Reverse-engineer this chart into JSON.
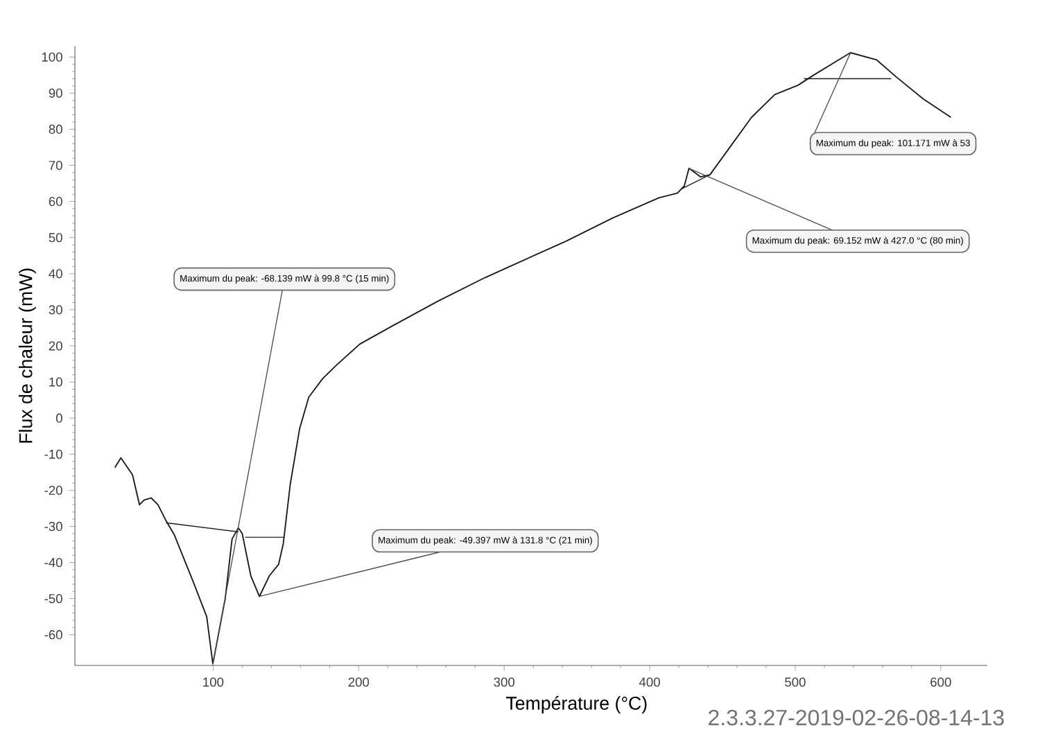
{
  "chart_data": {
    "type": "line",
    "xlabel": "Température (°C)",
    "ylabel": "Flux de chaleur (mW)",
    "marker": "none",
    "line_style": "solid",
    "xlim": [
      5,
      632
    ],
    "ylim": [
      -68.5,
      103
    ],
    "xticks": [
      100,
      200,
      300,
      400,
      500,
      600
    ],
    "yticks": [
      -60,
      -50,
      -40,
      -30,
      -20,
      -10,
      0,
      10,
      20,
      30,
      40,
      50,
      60,
      70,
      80,
      90,
      100
    ],
    "series": [
      {
        "color": "#1a1a1a",
        "x": [
          32.5,
          36.6,
          44.6,
          49.4,
          52.6,
          57.4,
          62.1,
          67.6,
          73.3,
          86,
          95.6,
          99.8,
          108.3,
          113,
          117.3,
          120,
          125.9,
          131.8,
          138.6,
          145,
          148.2,
          153,
          159.4,
          165.7,
          175.2,
          184.8,
          200.8,
          223,
          255,
          286.8,
          306,
          342.6,
          374.4,
          406.3,
          419,
          423.8,
          427,
          435,
          441.4,
          454,
          470,
          486,
          502,
          511.5,
          527.4,
          538,
          556,
          568.8,
          588,
          607
        ],
        "values": [
          -13.7,
          -11,
          -15.7,
          -24,
          -22.7,
          -22.1,
          -24,
          -28.4,
          -32.3,
          -45,
          -55,
          -68.1,
          -50,
          -33.5,
          -30.4,
          -32,
          -43.7,
          -49.4,
          -43.7,
          -40.5,
          -34.8,
          -18.3,
          -3,
          5.8,
          10.9,
          14.7,
          20.5,
          25.5,
          32.5,
          38.9,
          42.4,
          49,
          55.4,
          61,
          62.3,
          64.3,
          69.2,
          66.8,
          67.4,
          74.4,
          83.3,
          89.6,
          92.2,
          94.7,
          98.6,
          101.2,
          99.2,
          94.7,
          88.4,
          83.3
        ]
      },
      {
        "color": "#1a1a1a",
        "x": [
          67.6,
          117.3
        ],
        "values": [
          -29,
          -31.5
        ]
      },
      {
        "color": "#1a1a1a",
        "x": [
          122,
          149
        ],
        "values": [
          -33,
          -33
        ]
      },
      {
        "color": "#1a1a1a",
        "x": [
          422,
          441.4
        ],
        "values": [
          63.5,
          67.4
        ]
      },
      {
        "color": "#1a1a1a",
        "x": [
          506,
          566
        ],
        "values": [
          94,
          94
        ]
      }
    ],
    "annotations": [
      {
        "text": "Maximum du peak:   -68.139 mW à 99.8 °C (15 min)",
        "x": 99.8,
        "y": -68.139
      },
      {
        "text": "Maximum du peak:   -49.397 mW à 131.8 °C (21 min)",
        "x": 131.8,
        "y": -49.397
      },
      {
        "text": "Maximum du peak:   69.152 mW à 427.0 °C (80 min)",
        "x": 427.0,
        "y": 69.152
      },
      {
        "text": "Maximum du peak:   101.171 mW à 53",
        "x": 538,
        "y": 101.171
      },
      "2.3.3.27-2019-02-26-08-14-13"
    ]
  }
}
